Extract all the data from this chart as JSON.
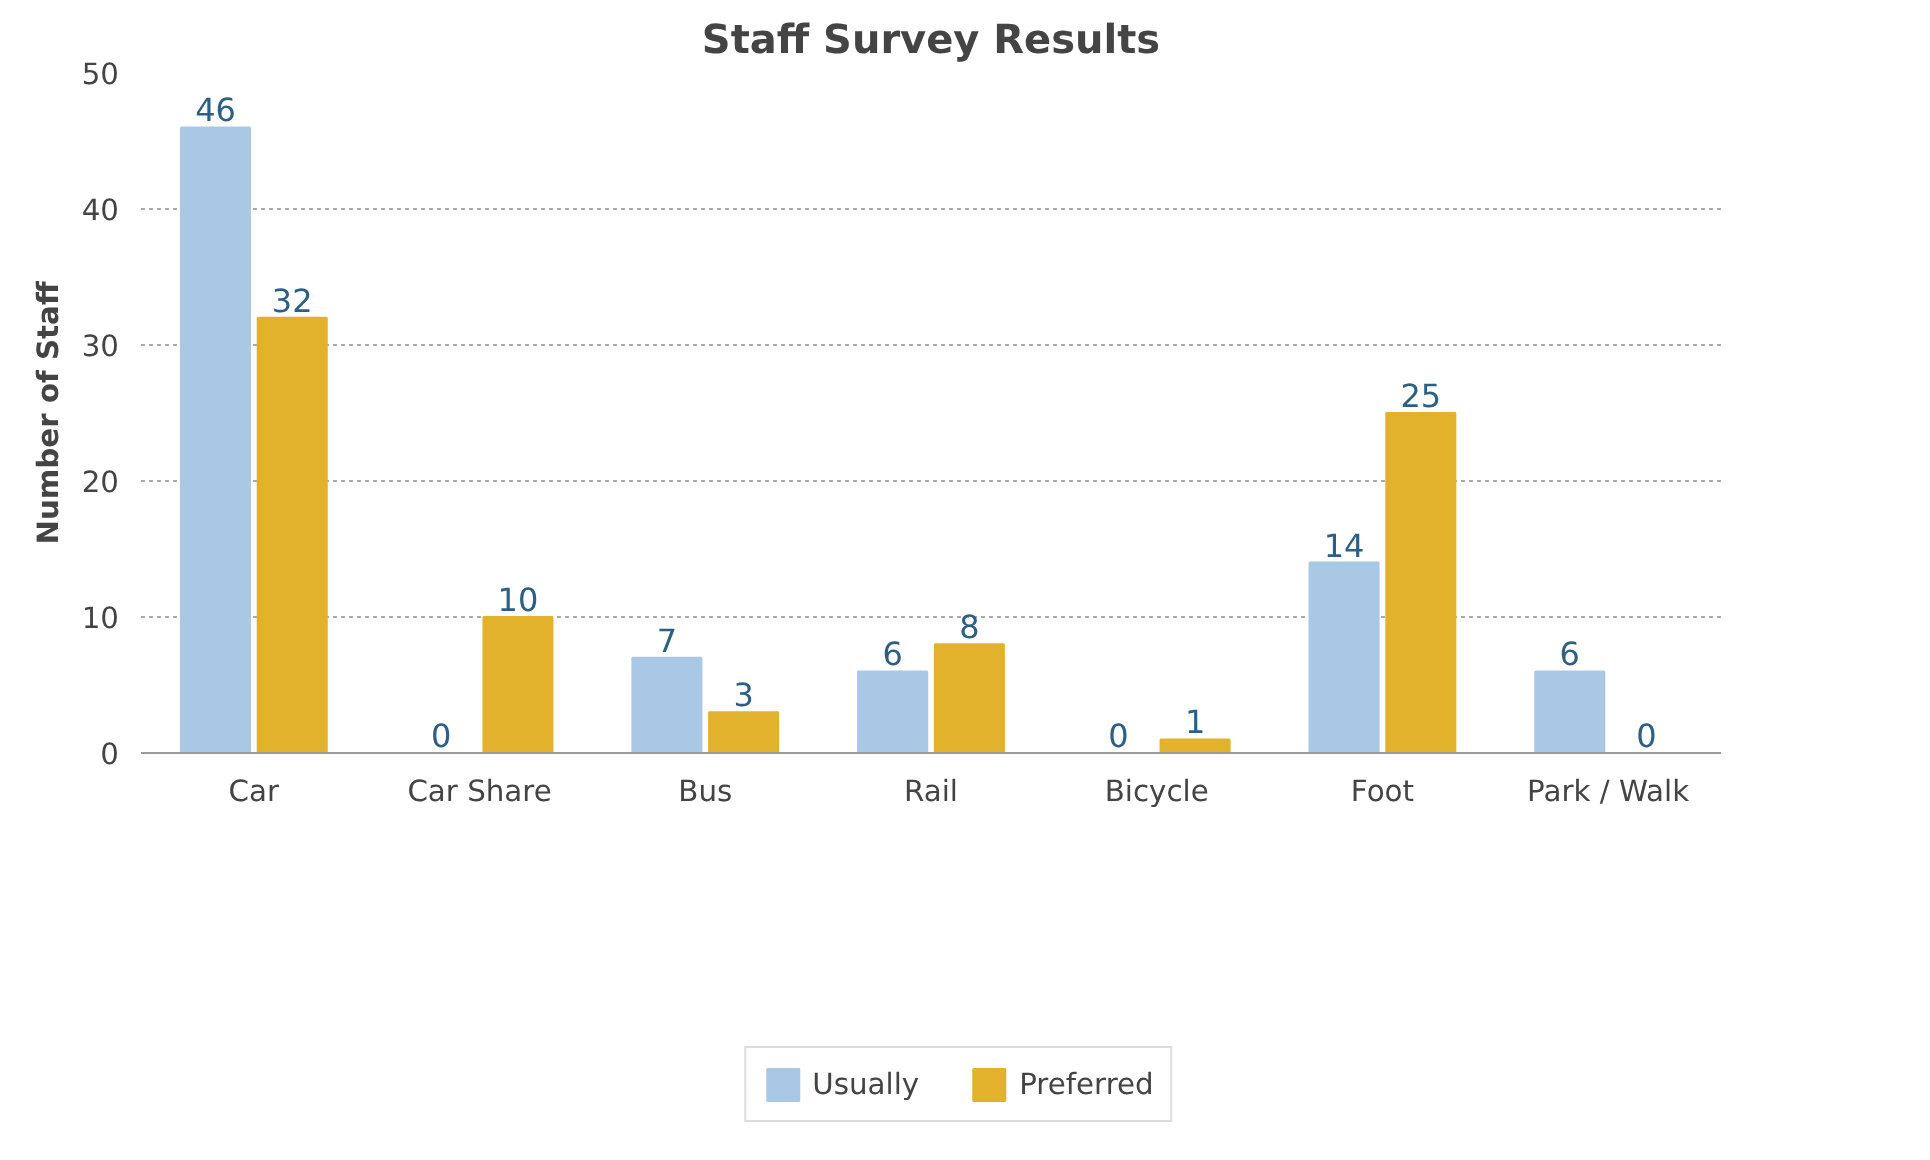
{
  "chart_data": {
    "type": "bar",
    "title": "Staff Survey Results",
    "ylabel": "Number of Staff",
    "categories": [
      "Car",
      "Car Share",
      "Bus",
      "Rail",
      "Bicycle",
      "Foot",
      "Park / Walk"
    ],
    "series": [
      {
        "name": "Usually",
        "color": "#a9c8e6",
        "values": [
          46,
          0,
          7,
          6,
          0,
          14,
          6
        ]
      },
      {
        "name": "Preferred",
        "color": "#e2b22c",
        "values": [
          32,
          10,
          3,
          8,
          1,
          25,
          0
        ]
      }
    ],
    "ylim": [
      0,
      50
    ],
    "yticks": [
      0,
      10,
      20,
      30,
      40,
      50
    ],
    "grid": "y",
    "legend": "bottom",
    "data_labels": true
  }
}
